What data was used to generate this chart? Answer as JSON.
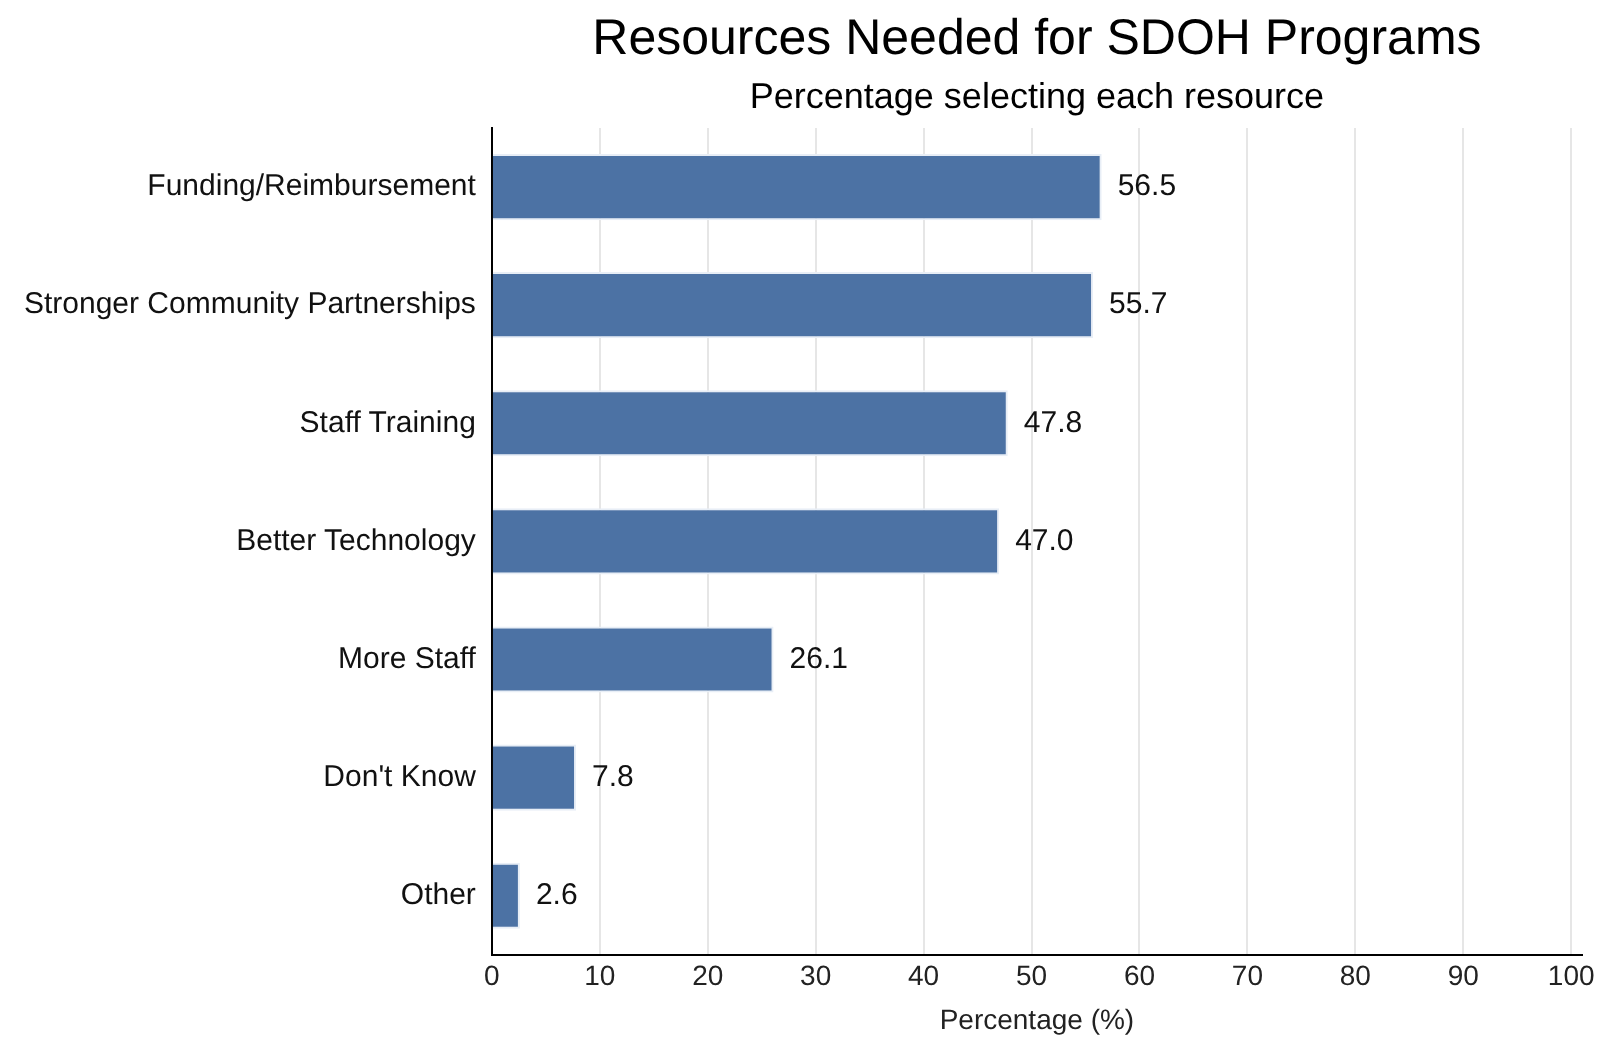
{
  "chart_data": {
    "type": "bar",
    "orientation": "horizontal",
    "title": "Resources Needed for SDOH Programs",
    "subtitle": "Percentage selecting each resource",
    "xlabel": "Percentage (%)",
    "categories": [
      "Funding/Reimbursement",
      "Stronger Community Partnerships",
      "Staff Training",
      "Better Technology",
      "More Staff",
      "Don't Know",
      "Other"
    ],
    "values": [
      56.5,
      55.7,
      47.8,
      47.0,
      26.1,
      7.8,
      2.6
    ],
    "value_labels": [
      "56.5",
      "55.7",
      "47.8",
      "47.0",
      "26.1",
      "7.8",
      "2.6"
    ],
    "color": "#4c72a4",
    "xlim": [
      0,
      101
    ],
    "xticks": [
      0,
      10,
      20,
      30,
      40,
      50,
      60,
      70,
      80,
      90,
      100
    ],
    "grid": "x",
    "legend": false
  }
}
